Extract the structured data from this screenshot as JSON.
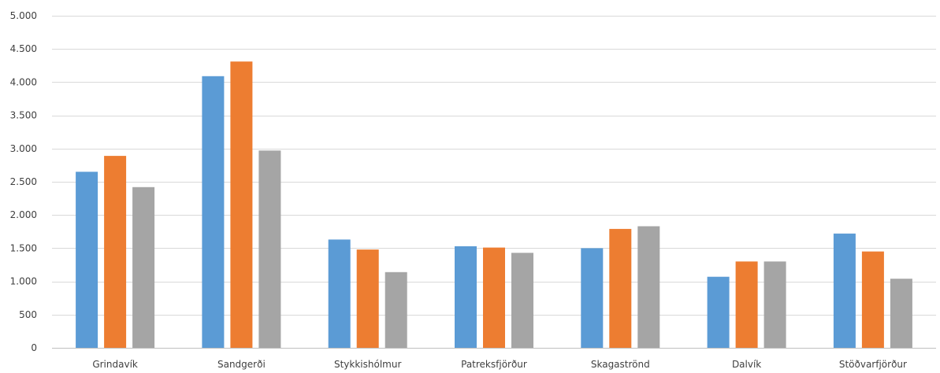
{
  "chart_data": {
    "type": "bar",
    "title": "",
    "xlabel": "",
    "ylabel": "",
    "ylim": [
      0,
      5000
    ],
    "yticks": [
      0,
      500,
      1000,
      1500,
      2000,
      2500,
      3000,
      3500,
      4000,
      4500,
      5000
    ],
    "ytick_labels": [
      "0",
      "500",
      "1.000",
      "1.500",
      "2.000",
      "2.500",
      "3.000",
      "3.500",
      "4.000",
      "4.500",
      "5.000"
    ],
    "grid": true,
    "legend": "none",
    "categories": [
      "Grindavík",
      "Sandgerði",
      "Stykkishólmur",
      "Patreksfjörður",
      "Skagaströnd",
      "Dalvík",
      "Stöðvarfjörður"
    ],
    "series": [
      {
        "color": "#5b9bd5",
        "values": [
          2650,
          4090,
          1630,
          1530,
          1500,
          1070,
          1720
        ]
      },
      {
        "color": "#ed7d31",
        "values": [
          2890,
          4310,
          1480,
          1510,
          1790,
          1300,
          1450
        ]
      },
      {
        "color": "#a5a5a5",
        "values": [
          2420,
          2970,
          1140,
          1430,
          1830,
          1300,
          1040
        ]
      }
    ]
  }
}
